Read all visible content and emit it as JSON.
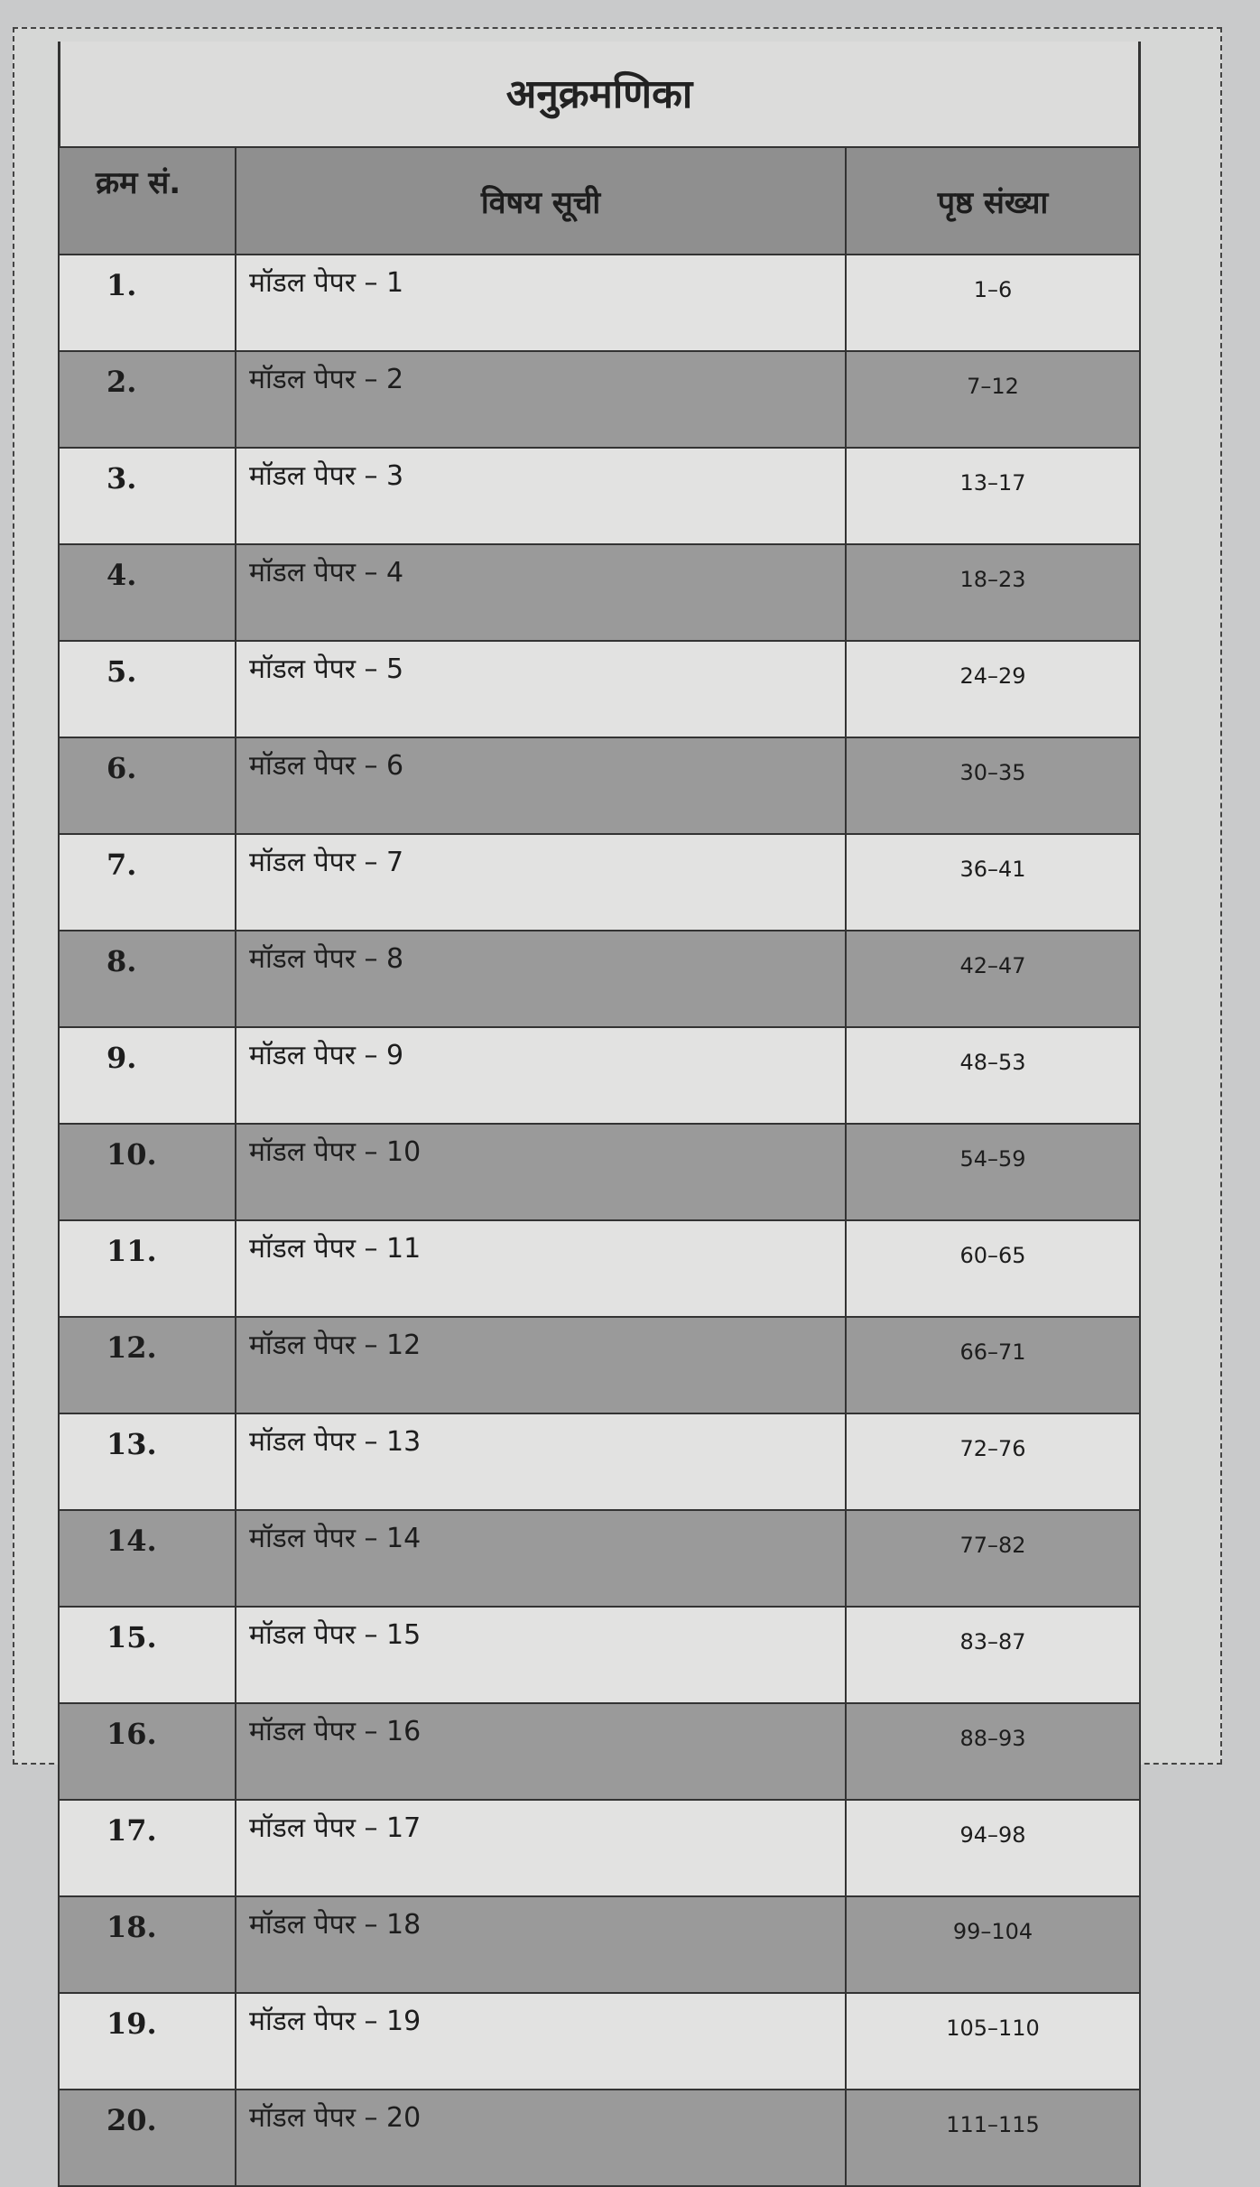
{
  "title": "अनुक्रमणिका",
  "headers": {
    "serial": "क्रम सं.",
    "subject": "विषय सूची",
    "pages": "पृष्ठ संख्या"
  },
  "rows": [
    {
      "no": "1.",
      "subject": "मॉडल पेपर – 1",
      "pages": "1–6"
    },
    {
      "no": "2.",
      "subject": "मॉडल पेपर – 2",
      "pages": "7–12"
    },
    {
      "no": "3.",
      "subject": "मॉडल पेपर – 3",
      "pages": "13–17"
    },
    {
      "no": "4.",
      "subject": "मॉडल पेपर – 4",
      "pages": "18–23"
    },
    {
      "no": "5.",
      "subject": "मॉडल पेपर – 5",
      "pages": "24–29"
    },
    {
      "no": "6.",
      "subject": "मॉडल पेपर – 6",
      "pages": "30–35"
    },
    {
      "no": "7.",
      "subject": "मॉडल पेपर – 7",
      "pages": "36–41"
    },
    {
      "no": "8.",
      "subject": "मॉडल पेपर – 8",
      "pages": "42–47"
    },
    {
      "no": "9.",
      "subject": "मॉडल पेपर – 9",
      "pages": "48–53"
    },
    {
      "no": "10.",
      "subject": "मॉडल पेपर – 10",
      "pages": "54–59"
    },
    {
      "no": "11.",
      "subject": "मॉडल पेपर – 11",
      "pages": "60–65"
    },
    {
      "no": "12.",
      "subject": "मॉडल पेपर – 12",
      "pages": "66–71"
    },
    {
      "no": "13.",
      "subject": "मॉडल पेपर – 13",
      "pages": "72–76"
    },
    {
      "no": "14.",
      "subject": "मॉडल पेपर – 14",
      "pages": "77–82"
    },
    {
      "no": "15.",
      "subject": "मॉडल पेपर – 15",
      "pages": "83–87"
    },
    {
      "no": "16.",
      "subject": "मॉडल पेपर – 16",
      "pages": "88–93"
    },
    {
      "no": "17.",
      "subject": "मॉडल पेपर – 17",
      "pages": "94–98"
    },
    {
      "no": "18.",
      "subject": "मॉडल पेपर – 18",
      "pages": "99–104"
    },
    {
      "no": "19.",
      "subject": "मॉडल पेपर – 19",
      "pages": "105–110"
    },
    {
      "no": "20.",
      "subject": "मॉडल पेपर – 20",
      "pages": "111–115"
    }
  ]
}
